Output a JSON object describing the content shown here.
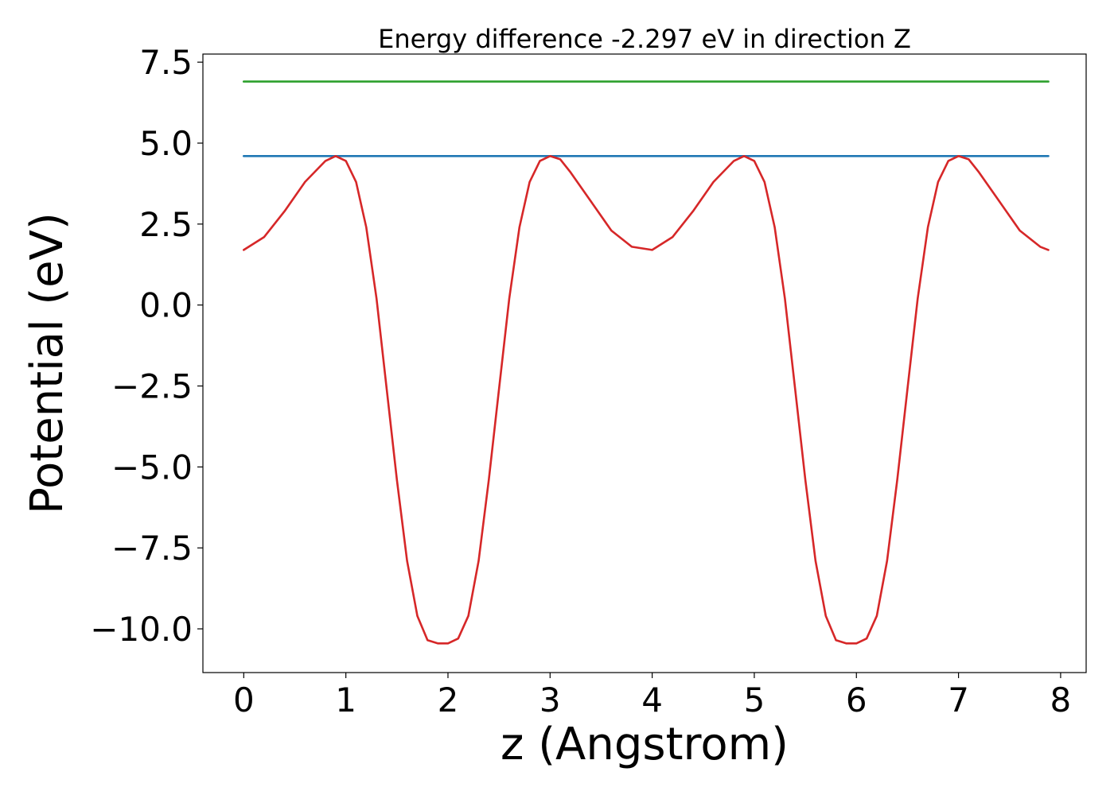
{
  "chart_data": {
    "type": "line",
    "title": "Energy difference -2.297 eV in direction Z",
    "xlabel": "z (Angstrom)",
    "ylabel": "Potential (eV)",
    "xlim": [
      -0.4,
      8.25
    ],
    "ylim": [
      -11.35,
      7.75
    ],
    "x_ticks": [
      0,
      1,
      2,
      3,
      4,
      5,
      6,
      7,
      8
    ],
    "x_tick_labels": [
      "0",
      "1",
      "2",
      "3",
      "4",
      "5",
      "6",
      "7",
      "8"
    ],
    "y_ticks": [
      7.5,
      5.0,
      2.5,
      0.0,
      -2.5,
      -5.0,
      -7.5,
      -10.0
    ],
    "y_tick_labels": [
      "7.5",
      "5.0",
      "2.5",
      "0.0",
      "−2.5",
      "−5.0",
      "−7.5",
      "−10.0"
    ],
    "grid": false,
    "series": [
      {
        "color": "#2ca02c",
        "x": [
          0,
          7.88
        ],
        "y": [
          6.9,
          6.9
        ]
      },
      {
        "color": "#1f77b4",
        "x": [
          0,
          7.88
        ],
        "y": [
          4.6,
          4.6
        ]
      },
      {
        "color": "#d62728",
        "x": [
          0.0,
          0.2,
          0.4,
          0.6,
          0.8,
          0.9,
          1.0,
          1.1,
          1.2,
          1.3,
          1.4,
          1.5,
          1.6,
          1.7,
          1.8,
          1.9,
          2.0,
          2.1,
          2.2,
          2.3,
          2.4,
          2.5,
          2.6,
          2.7,
          2.8,
          2.9,
          3.0,
          3.1,
          3.2,
          3.4,
          3.6,
          3.8,
          4.0,
          4.2,
          4.4,
          4.6,
          4.8,
          4.9,
          5.0,
          5.1,
          5.2,
          5.3,
          5.4,
          5.5,
          5.6,
          5.7,
          5.8,
          5.9,
          6.0,
          6.1,
          6.2,
          6.3,
          6.4,
          6.5,
          6.6,
          6.7,
          6.8,
          6.9,
          7.0,
          7.1,
          7.2,
          7.4,
          7.6,
          7.8,
          7.88
        ],
        "y": [
          1.7,
          2.1,
          2.9,
          3.8,
          4.45,
          4.6,
          4.45,
          3.8,
          2.4,
          0.2,
          -2.6,
          -5.4,
          -7.9,
          -9.6,
          -10.35,
          -10.45,
          -10.45,
          -10.3,
          -9.6,
          -7.9,
          -5.4,
          -2.6,
          0.2,
          2.4,
          3.8,
          4.45,
          4.6,
          4.5,
          4.1,
          3.2,
          2.3,
          1.8,
          1.7,
          2.1,
          2.9,
          3.8,
          4.45,
          4.6,
          4.45,
          3.8,
          2.4,
          0.2,
          -2.6,
          -5.4,
          -7.9,
          -9.6,
          -10.35,
          -10.45,
          -10.45,
          -10.3,
          -9.6,
          -7.9,
          -5.4,
          -2.6,
          0.2,
          2.4,
          3.8,
          4.45,
          4.6,
          4.5,
          4.1,
          3.2,
          2.3,
          1.8,
          1.7
        ]
      }
    ]
  }
}
